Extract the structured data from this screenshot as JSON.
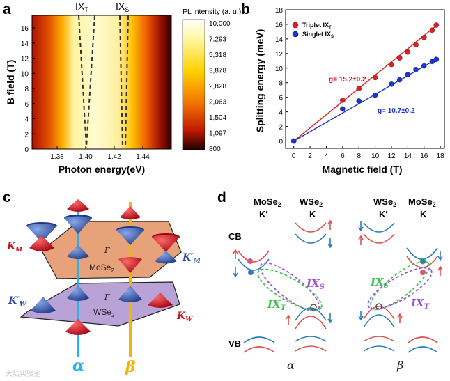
{
  "panels": {
    "a": "a",
    "b": "b",
    "c": "c",
    "d": "d"
  },
  "panel_a": {
    "ylabel": "B field (T)",
    "xlabel": "Photon energy(eV)",
    "yticks": [
      "16",
      "14",
      "12",
      "10",
      "8",
      "6",
      "4",
      "2",
      "0"
    ],
    "xticks": [
      "1.38",
      "1.40",
      "1.42",
      "1.44"
    ],
    "peak_labels": [
      {
        "main": "IX",
        "sub": "T"
      },
      {
        "main": "IX",
        "sub": "S"
      }
    ],
    "colorbar_title": "PL intensity (a. u.)",
    "colorbar_ticks": [
      "10,000",
      "7,293",
      "5,318",
      "3,878",
      "2,828",
      "2,063",
      "1,504",
      "1,097",
      "800"
    ]
  },
  "chart_data": {
    "type": "scatter",
    "xlabel": "Magnetic field (T)",
    "ylabel": "Splitting energy (meV)",
    "xlim": [
      -1,
      18.5
    ],
    "ylim": [
      -1,
      18
    ],
    "xticks": [
      "0",
      "2",
      "4",
      "6",
      "8",
      "10",
      "12",
      "14",
      "16",
      "18"
    ],
    "yticks": [
      "0",
      "2",
      "4",
      "6",
      "8",
      "10",
      "12",
      "14",
      "16",
      "18"
    ],
    "series": [
      {
        "name": "Triplet IX_T",
        "legend_main": "Triplet  IX",
        "legend_sub": "T",
        "color": "#e02020",
        "x": [
          0,
          6,
          8,
          10,
          12,
          13,
          14,
          15,
          16,
          17,
          17.5
        ],
        "y": [
          0,
          5.6,
          7.2,
          8.7,
          10.5,
          11.4,
          12.2,
          13.2,
          14.2,
          15.2,
          15.9
        ],
        "fit": [
          [
            0,
            0
          ],
          [
            17.8,
            16.1
          ]
        ],
        "annotation": "g= 15.2±0.2"
      },
      {
        "name": "Singlet IX_S",
        "legend_main": "Singlet IX",
        "legend_sub": "S",
        "color": "#1a35d0",
        "x": [
          0,
          6,
          8,
          10,
          12,
          13,
          14,
          15,
          16,
          17,
          17.5
        ],
        "y": [
          0,
          4.4,
          5.5,
          6.3,
          7.8,
          8.4,
          9.1,
          9.8,
          10.3,
          10.9,
          11.2
        ],
        "fit": [
          [
            0,
            0
          ],
          [
            17.8,
            11.4
          ]
        ],
        "annotation": "g= 10.7±0.2"
      }
    ]
  },
  "panel_c": {
    "labels": {
      "KM_main": "K",
      "KM_sub": "M",
      "KpM_main": "K′",
      "KpM_sub": "M",
      "KpW_main": "K′",
      "KpW_sub": "W",
      "KW_main": "K",
      "KW_sub": "W",
      "gamma1": "Γ",
      "gamma2": "Γ",
      "mose2": "MoSe",
      "mose2_sub": "2",
      "wse2": "WSe",
      "wse2_sub": "2",
      "alpha": "α",
      "beta": "β"
    },
    "colors": {
      "red": "#c8141e",
      "blue": "#2e4f9e",
      "mose2_plane": "#e8a27a",
      "wse2_plane": "#b9a3d6",
      "alpha": "#2ab3e8",
      "beta": "#f5b400"
    }
  },
  "panel_d": {
    "left_header": [
      {
        "main": "MoSe",
        "sub": "2",
        "second": "K′"
      },
      {
        "main": "WSe",
        "sub": "2",
        "second": "K"
      }
    ],
    "right_header": [
      {
        "main": "WSe",
        "sub": "2",
        "second": "K′"
      },
      {
        "main": "MoSe",
        "sub": "2",
        "second": "K"
      }
    ],
    "cb": "CB",
    "vb": "VB",
    "ix_s": "IX",
    "ix_s_sub": "S",
    "ix_t": "IX",
    "ix_t_sub": "T",
    "alpha": "α",
    "beta": "β",
    "colors": {
      "red": "#e05050",
      "blue": "#2f7bbf",
      "ixs": "#a050d8",
      "ixt": "#3cc050"
    }
  },
  "watermark": "大陆实验室"
}
